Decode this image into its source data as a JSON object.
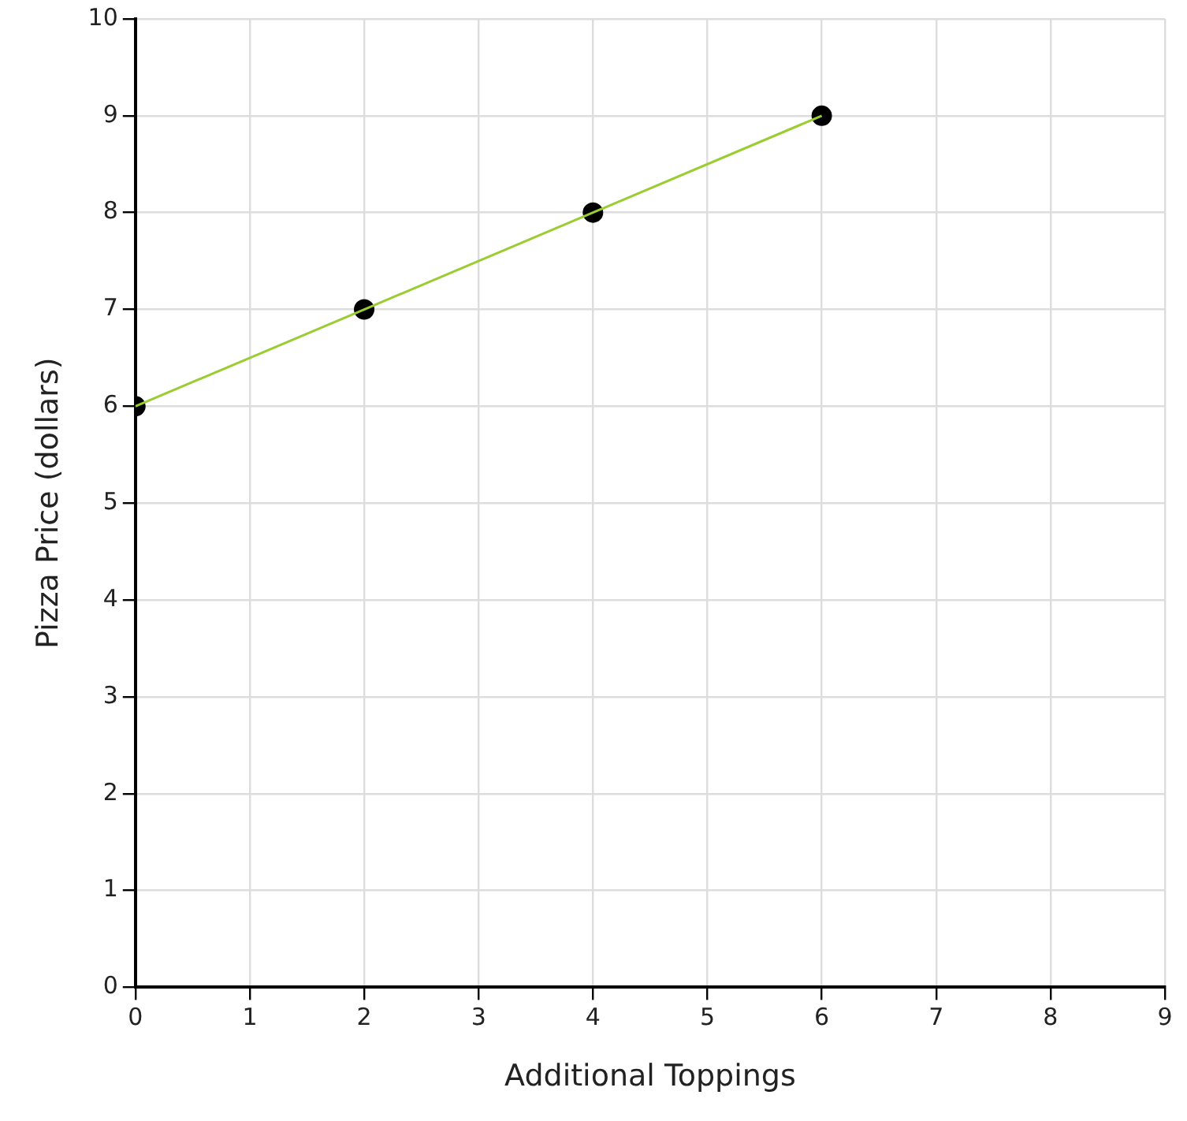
{
  "chart_data": {
    "type": "line",
    "xlabel": "Additional Toppings",
    "ylabel": "Pizza Price (dollars)",
    "x": [
      0,
      2,
      4,
      6
    ],
    "series": [
      {
        "color": "#9acd32",
        "values": [
          6,
          7,
          8,
          9
        ],
        "marker": "none"
      },
      {
        "type": "scatter",
        "color": "#000000",
        "values": [
          6,
          7,
          8,
          9
        ],
        "marker": "circle"
      }
    ],
    "xlim": [
      0,
      9
    ],
    "xticks": [
      0,
      1,
      2,
      3,
      4,
      5,
      6,
      7,
      8,
      9
    ],
    "ylim": [
      0,
      10
    ],
    "yticks": [
      0,
      1,
      2,
      3,
      4,
      5,
      6,
      7,
      8,
      9,
      10
    ],
    "grid": true,
    "legend": false
  }
}
